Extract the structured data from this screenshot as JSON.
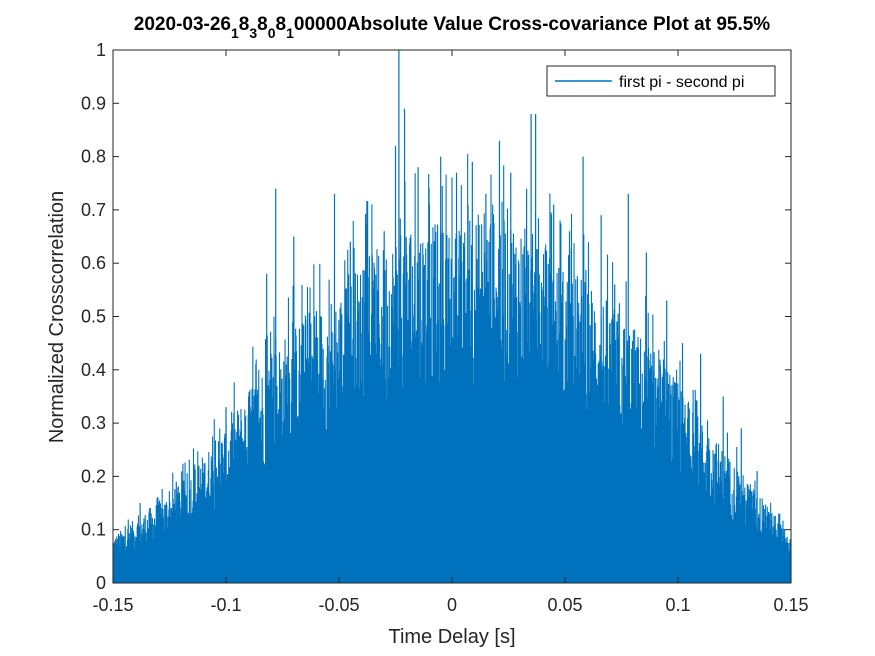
{
  "chart_data": {
    "type": "bar",
    "title_parts": {
      "p1": "2020-03-26",
      "s1": "1",
      "p2": "8",
      "s2": "3",
      "p3": "8",
      "s3": "0",
      "p4": "8",
      "s4": "1",
      "p5": "00000Absolute Value Cross-covariance Plot at 95.5%"
    },
    "xlabel": "Time Delay [s]",
    "ylabel": "Normalized Crosscorrelation",
    "xlim": [
      -0.15,
      0.15
    ],
    "ylim": [
      0,
      1
    ],
    "xticks": [
      -0.15,
      -0.1,
      -0.05,
      0,
      0.05,
      0.1,
      0.15
    ],
    "xtick_labels": [
      "-0.15",
      "-0.1",
      "-0.05",
      "0",
      "0.05",
      "0.1",
      "0.15"
    ],
    "yticks": [
      0,
      0.1,
      0.2,
      0.3,
      0.4,
      0.5,
      0.6,
      0.7,
      0.8,
      0.9,
      1
    ],
    "ytick_labels": [
      "0",
      "0.1",
      "0.2",
      "0.3",
      "0.4",
      "0.5",
      "0.6",
      "0.7",
      "0.8",
      "0.9",
      "1"
    ],
    "grid": false,
    "legend_position": "top-right",
    "series": [
      {
        "name": "first pi - second pi",
        "color": "#0072BD",
        "envelope": {
          "x": [
            -0.15,
            -0.14,
            -0.13,
            -0.12,
            -0.11,
            -0.1,
            -0.09,
            -0.08,
            -0.07,
            -0.06,
            -0.05,
            -0.04,
            -0.03,
            -0.02,
            -0.01,
            0,
            0.01,
            0.02,
            0.03,
            0.04,
            0.05,
            0.06,
            0.07,
            0.08,
            0.09,
            0.1,
            0.11,
            0.12,
            0.13,
            0.14,
            0.15
          ],
          "y": [
            0.08,
            0.11,
            0.14,
            0.17,
            0.22,
            0.27,
            0.33,
            0.4,
            0.44,
            0.47,
            0.5,
            0.55,
            0.58,
            0.62,
            0.62,
            0.6,
            0.63,
            0.66,
            0.62,
            0.58,
            0.54,
            0.52,
            0.48,
            0.44,
            0.4,
            0.34,
            0.28,
            0.23,
            0.18,
            0.13,
            0.08
          ]
        },
        "peaks": [
          {
            "x": -0.138,
            "y": 0.15
          },
          {
            "x": -0.122,
            "y": 0.19
          },
          {
            "x": -0.112,
            "y": 0.22
          },
          {
            "x": -0.1,
            "y": 0.33
          },
          {
            "x": -0.09,
            "y": 0.35
          },
          {
            "x": -0.082,
            "y": 0.58
          },
          {
            "x": -0.078,
            "y": 0.74
          },
          {
            "x": -0.07,
            "y": 0.65
          },
          {
            "x": -0.06,
            "y": 0.51
          },
          {
            "x": -0.052,
            "y": 0.73
          },
          {
            "x": -0.045,
            "y": 0.64
          },
          {
            "x": -0.038,
            "y": 0.57
          },
          {
            "x": -0.03,
            "y": 0.66
          },
          {
            "x": -0.025,
            "y": 0.82
          },
          {
            "x": -0.0235,
            "y": 1.0
          },
          {
            "x": -0.021,
            "y": 0.89
          },
          {
            "x": -0.015,
            "y": 0.78
          },
          {
            "x": -0.01,
            "y": 0.71
          },
          {
            "x": -0.005,
            "y": 0.8
          },
          {
            "x": 0.002,
            "y": 0.77
          },
          {
            "x": 0.009,
            "y": 0.79
          },
          {
            "x": 0.015,
            "y": 0.73
          },
          {
            "x": 0.021,
            "y": 0.83
          },
          {
            "x": 0.026,
            "y": 0.77
          },
          {
            "x": 0.033,
            "y": 0.74
          },
          {
            "x": 0.035,
            "y": 0.88
          },
          {
            "x": 0.037,
            "y": 0.88
          },
          {
            "x": 0.045,
            "y": 0.71
          },
          {
            "x": 0.052,
            "y": 0.66
          },
          {
            "x": 0.058,
            "y": 0.8
          },
          {
            "x": 0.066,
            "y": 0.69
          },
          {
            "x": 0.072,
            "y": 0.56
          },
          {
            "x": 0.078,
            "y": 0.73
          },
          {
            "x": 0.086,
            "y": 0.62
          },
          {
            "x": 0.095,
            "y": 0.53
          },
          {
            "x": 0.102,
            "y": 0.45
          },
          {
            "x": 0.11,
            "y": 0.43
          },
          {
            "x": 0.12,
            "y": 0.35
          },
          {
            "x": 0.128,
            "y": 0.29
          },
          {
            "x": 0.135,
            "y": 0.21
          },
          {
            "x": 0.145,
            "y": 0.13
          }
        ]
      }
    ]
  }
}
